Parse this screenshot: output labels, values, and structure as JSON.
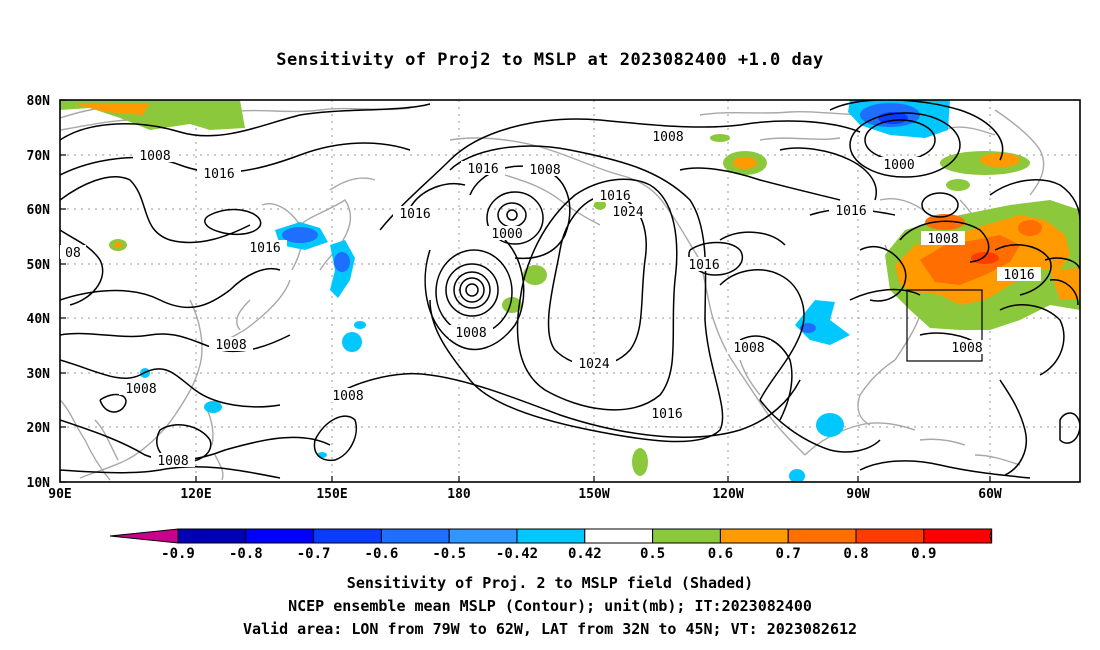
{
  "title": "Sensitivity of Proj2 to MSLP at 2023082400 +1.0 day",
  "map": {
    "lon_labels": [
      "90E",
      "120E",
      "150E",
      "180",
      "150W",
      "120W",
      "90W",
      "60W"
    ],
    "lat_labels": [
      "80N",
      "70N",
      "60N",
      "50N",
      "40N",
      "30N",
      "20N",
      "10N"
    ],
    "contour_labels": [
      "1008",
      "1016",
      "1016",
      "08",
      "1016",
      "1016",
      "1008",
      "1008",
      "1016",
      "1024",
      "1000",
      "1016",
      "1008",
      "1024",
      "1008",
      "1008",
      "1008",
      "1008",
      "1016",
      "1016",
      "1008",
      "1008",
      "1000",
      "1016",
      "1008",
      "1016",
      "1016"
    ],
    "valid_box": {
      "lon_min": -79,
      "lon_max": -62,
      "lat_min": 32,
      "lat_max": 45
    }
  },
  "colorbar": {
    "labels": [
      "-0.9",
      "-0.8",
      "-0.7",
      "-0.6",
      "-0.5",
      "-0.42",
      "0.42",
      "0.5",
      "0.6",
      "0.7",
      "0.8",
      "0.9"
    ],
    "colors": [
      "#c8008c",
      "#0000b4",
      "#0000ff",
      "#0a3cff",
      "#1e6eff",
      "#3296ff",
      "#00c8ff",
      "#ffffff",
      "#8cc83c",
      "#ff9b00",
      "#ff6e00",
      "#ff3c00",
      "#ff0000",
      "#ff96c8"
    ]
  },
  "captions": {
    "line1": "Sensitivity of Proj. 2 to MSLP field (Shaded)",
    "line2": "NCEP ensemble mean MSLP (Contour); unit(mb); IT:2023082400",
    "line3": "Valid area: LON from 79W to 62W, LAT from 32N to 45N; VT: 2023082612"
  }
}
